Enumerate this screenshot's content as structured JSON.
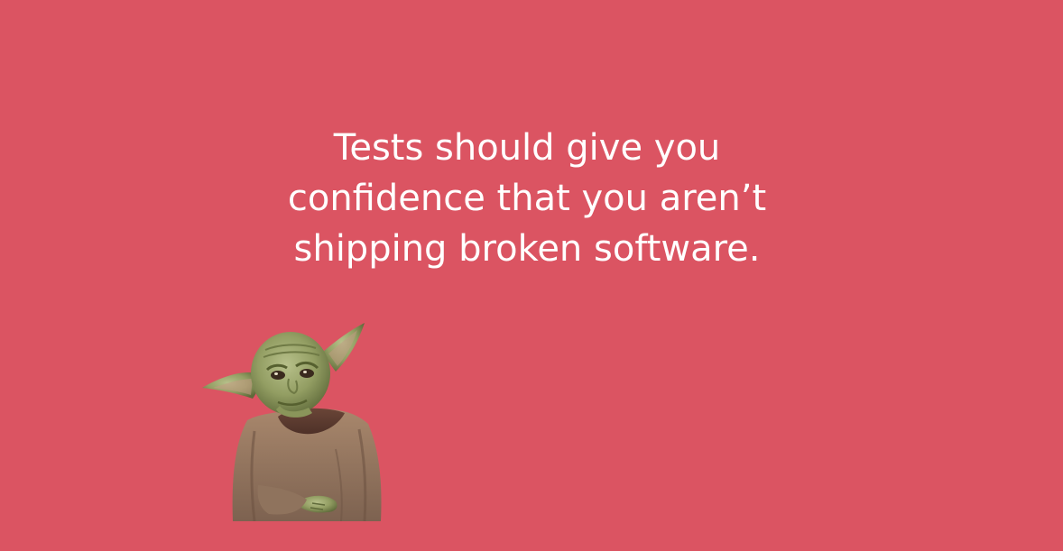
{
  "slide": {
    "background_color": "#db5462",
    "text_color": "#ffffff",
    "quote_lines": [
      "Tests should give you",
      "confidence that you aren’t",
      "shipping broken software."
    ],
    "illustration": {
      "icon": "yoda-figure-icon"
    }
  }
}
